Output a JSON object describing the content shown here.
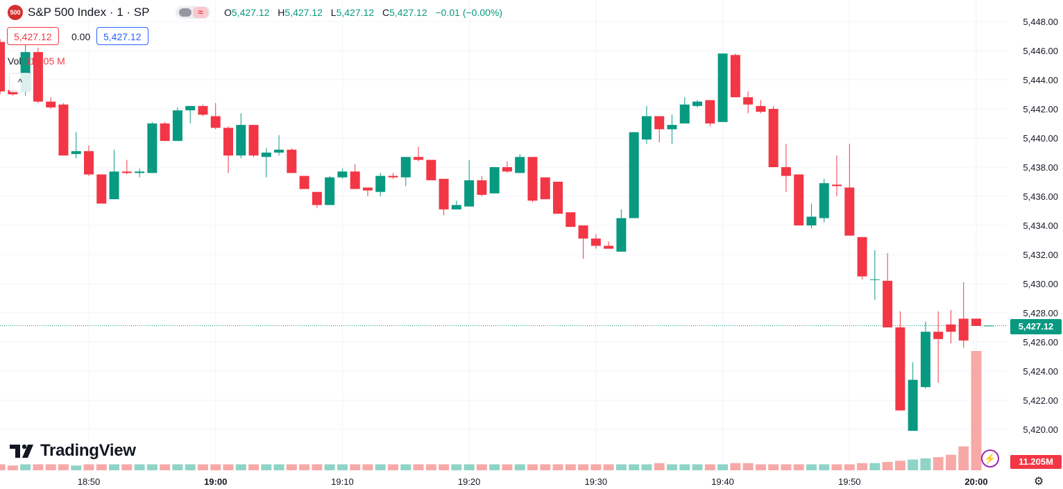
{
  "header": {
    "badge": "500",
    "symbol_title": "S&P 500 Index · 1 · SP",
    "indicator_toggle_icon": "approx-icon",
    "ohlc": {
      "o_label": "O",
      "o": "5,427.12",
      "h_label": "H",
      "h": "5,427.12",
      "l_label": "L",
      "l": "5,427.12",
      "c_label": "C",
      "c": "5,427.12",
      "change": "−0.01 (−0.00%)"
    },
    "bid": "5,427.12",
    "spread": "0.00",
    "ask": "5,427.12"
  },
  "volume_legend": {
    "label": "Vol",
    "value": "11.205 M"
  },
  "collapse_icon": "chevron-up-icon",
  "brand": "TradingView",
  "last_price_label": "5,427.12",
  "last_volume_label": "11.205M",
  "colors": {
    "up": "#089981",
    "down": "#f23645",
    "up_vol": "#8fd4c6",
    "down_vol": "#f7a9a8",
    "grid": "#f0f3fa",
    "text": "#131722"
  },
  "chart_data": {
    "type": "candlestick",
    "title": "S&P 500 Index · 1 · SP",
    "x_ticks": [
      "18:50",
      "19:00",
      "19:10",
      "19:20",
      "19:30",
      "19:40",
      "19:50",
      "20:00"
    ],
    "y_ticks": [
      "5,420.00",
      "5,422.00",
      "5,424.00",
      "5,426.00",
      "5,428.00",
      "5,430.00",
      "5,432.00",
      "5,434.00",
      "5,436.00",
      "5,438.00",
      "5,440.00",
      "5,442.00",
      "5,444.00",
      "5,446.00",
      "5,448.00"
    ],
    "ylim": [
      5418.8,
      5448.6
    ],
    "last_price": 5427.12,
    "interval": "1 minute",
    "candles": [
      {
        "t": "18:43",
        "o": 5446.6,
        "h": 5446.8,
        "l": 5443.0,
        "c": 5443.2
      },
      {
        "t": "18:44",
        "o": 5443.3,
        "h": 5443.6,
        "l": 5442.9,
        "c": 5443.0
      },
      {
        "t": "18:45",
        "o": 5443.2,
        "h": 5446.8,
        "l": 5442.9,
        "c": 5445.9
      },
      {
        "t": "18:46",
        "o": 5445.9,
        "h": 5446.2,
        "l": 5442.4,
        "c": 5442.5
      },
      {
        "t": "18:47",
        "o": 5442.5,
        "h": 5442.8,
        "l": 5442.0,
        "c": 5442.1
      },
      {
        "t": "18:48",
        "o": 5442.3,
        "h": 5442.4,
        "l": 5438.8,
        "c": 5438.8
      },
      {
        "t": "18:49",
        "o": 5438.9,
        "h": 5440.4,
        "l": 5438.6,
        "c": 5439.1
      },
      {
        "t": "18:50",
        "o": 5439.1,
        "h": 5439.5,
        "l": 5437.4,
        "c": 5437.5
      },
      {
        "t": "18:51",
        "o": 5437.5,
        "h": 5437.5,
        "l": 5435.5,
        "c": 5435.5
      },
      {
        "t": "18:52",
        "o": 5435.8,
        "h": 5439.2,
        "l": 5435.8,
        "c": 5437.7
      },
      {
        "t": "18:53",
        "o": 5437.7,
        "h": 5438.5,
        "l": 5437.5,
        "c": 5437.6
      },
      {
        "t": "18:54",
        "o": 5437.6,
        "h": 5437.9,
        "l": 5437.3,
        "c": 5437.7
      },
      {
        "t": "18:55",
        "o": 5437.6,
        "h": 5441.1,
        "l": 5437.6,
        "c": 5441.0
      },
      {
        "t": "18:56",
        "o": 5441.0,
        "h": 5441.1,
        "l": 5439.8,
        "c": 5439.8
      },
      {
        "t": "18:57",
        "o": 5439.8,
        "h": 5442.1,
        "l": 5439.8,
        "c": 5441.9
      },
      {
        "t": "18:58",
        "o": 5441.9,
        "h": 5442.2,
        "l": 5441.0,
        "c": 5442.2
      },
      {
        "t": "18:59",
        "o": 5442.2,
        "h": 5442.3,
        "l": 5441.5,
        "c": 5441.6
      },
      {
        "t": "19:00",
        "o": 5441.5,
        "h": 5442.4,
        "l": 5440.6,
        "c": 5440.7
      },
      {
        "t": "19:01",
        "o": 5440.7,
        "h": 5440.8,
        "l": 5437.6,
        "c": 5438.8
      },
      {
        "t": "19:02",
        "o": 5438.8,
        "h": 5441.7,
        "l": 5438.6,
        "c": 5440.9
      },
      {
        "t": "19:03",
        "o": 5440.9,
        "h": 5440.9,
        "l": 5438.7,
        "c": 5438.8
      },
      {
        "t": "19:04",
        "o": 5438.7,
        "h": 5439.3,
        "l": 5437.3,
        "c": 5439.0
      },
      {
        "t": "19:05",
        "o": 5439.0,
        "h": 5440.2,
        "l": 5438.8,
        "c": 5439.2
      },
      {
        "t": "19:06",
        "o": 5439.2,
        "h": 5439.3,
        "l": 5437.6,
        "c": 5437.6
      },
      {
        "t": "19:07",
        "o": 5437.4,
        "h": 5437.4,
        "l": 5436.5,
        "c": 5436.5
      },
      {
        "t": "19:08",
        "o": 5436.3,
        "h": 5436.3,
        "l": 5435.2,
        "c": 5435.4
      },
      {
        "t": "19:09",
        "o": 5435.4,
        "h": 5437.4,
        "l": 5435.4,
        "c": 5437.3
      },
      {
        "t": "19:10",
        "o": 5437.3,
        "h": 5437.9,
        "l": 5437.2,
        "c": 5437.7
      },
      {
        "t": "19:11",
        "o": 5437.7,
        "h": 5438.2,
        "l": 5436.5,
        "c": 5436.5
      },
      {
        "t": "19:12",
        "o": 5436.6,
        "h": 5436.6,
        "l": 5436.0,
        "c": 5436.4
      },
      {
        "t": "19:13",
        "o": 5436.3,
        "h": 5437.6,
        "l": 5436.0,
        "c": 5437.4
      },
      {
        "t": "19:14",
        "o": 5437.4,
        "h": 5437.6,
        "l": 5437.2,
        "c": 5437.3
      },
      {
        "t": "19:15",
        "o": 5437.3,
        "h": 5438.7,
        "l": 5436.7,
        "c": 5438.7
      },
      {
        "t": "19:16",
        "o": 5438.7,
        "h": 5439.4,
        "l": 5438.4,
        "c": 5438.5
      },
      {
        "t": "19:17",
        "o": 5438.5,
        "h": 5438.5,
        "l": 5437.1,
        "c": 5437.1
      },
      {
        "t": "19:18",
        "o": 5437.2,
        "h": 5437.2,
        "l": 5434.7,
        "c": 5435.1
      },
      {
        "t": "19:19",
        "o": 5435.1,
        "h": 5435.7,
        "l": 5435.1,
        "c": 5435.4
      },
      {
        "t": "19:20",
        "o": 5435.3,
        "h": 5438.5,
        "l": 5435.3,
        "c": 5437.1
      },
      {
        "t": "19:21",
        "o": 5437.1,
        "h": 5437.4,
        "l": 5436.0,
        "c": 5436.1
      },
      {
        "t": "19:22",
        "o": 5436.2,
        "h": 5438.0,
        "l": 5436.2,
        "c": 5438.0
      },
      {
        "t": "19:23",
        "o": 5438.0,
        "h": 5438.4,
        "l": 5437.6,
        "c": 5437.7
      },
      {
        "t": "19:24",
        "o": 5437.6,
        "h": 5438.9,
        "l": 5437.6,
        "c": 5438.7
      },
      {
        "t": "19:25",
        "o": 5438.7,
        "h": 5438.7,
        "l": 5435.6,
        "c": 5435.7
      },
      {
        "t": "19:26",
        "o": 5437.3,
        "h": 5437.3,
        "l": 5435.8,
        "c": 5435.8
      },
      {
        "t": "19:27",
        "o": 5437.0,
        "h": 5437.0,
        "l": 5434.8,
        "c": 5434.8
      },
      {
        "t": "19:28",
        "o": 5434.9,
        "h": 5434.9,
        "l": 5433.9,
        "c": 5433.9
      },
      {
        "t": "19:29",
        "o": 5434.0,
        "h": 5434.0,
        "l": 5431.7,
        "c": 5433.1
      },
      {
        "t": "19:30",
        "o": 5433.1,
        "h": 5433.4,
        "l": 5432.4,
        "c": 5432.6
      },
      {
        "t": "19:31",
        "o": 5432.6,
        "h": 5432.9,
        "l": 5432.4,
        "c": 5432.4
      },
      {
        "t": "19:32",
        "o": 5432.2,
        "h": 5435.1,
        "l": 5432.2,
        "c": 5434.5
      },
      {
        "t": "19:33",
        "o": 5434.5,
        "h": 5440.4,
        "l": 5434.5,
        "c": 5440.4
      },
      {
        "t": "19:34",
        "o": 5439.9,
        "h": 5442.2,
        "l": 5439.6,
        "c": 5441.5
      },
      {
        "t": "19:35",
        "o": 5441.5,
        "h": 5441.5,
        "l": 5439.7,
        "c": 5440.6
      },
      {
        "t": "19:36",
        "o": 5440.6,
        "h": 5441.6,
        "l": 5439.6,
        "c": 5440.9
      },
      {
        "t": "19:37",
        "o": 5441.0,
        "h": 5442.8,
        "l": 5441.0,
        "c": 5442.3
      },
      {
        "t": "19:38",
        "o": 5442.2,
        "h": 5442.6,
        "l": 5442.1,
        "c": 5442.5
      },
      {
        "t": "19:39",
        "o": 5442.6,
        "h": 5442.6,
        "l": 5440.8,
        "c": 5441.0
      },
      {
        "t": "19:40",
        "o": 5441.1,
        "h": 5445.8,
        "l": 5441.1,
        "c": 5445.8
      },
      {
        "t": "19:41",
        "o": 5445.7,
        "h": 5445.8,
        "l": 5442.8,
        "c": 5442.8
      },
      {
        "t": "19:42",
        "o": 5442.8,
        "h": 5443.2,
        "l": 5441.7,
        "c": 5442.3
      },
      {
        "t": "19:43",
        "o": 5442.2,
        "h": 5442.6,
        "l": 5441.7,
        "c": 5441.8
      },
      {
        "t": "19:44",
        "o": 5442.0,
        "h": 5442.2,
        "l": 5438.0,
        "c": 5438.0
      },
      {
        "t": "19:45",
        "o": 5438.0,
        "h": 5439.6,
        "l": 5436.3,
        "c": 5437.4
      },
      {
        "t": "19:46",
        "o": 5437.5,
        "h": 5437.5,
        "l": 5434.0,
        "c": 5434.0
      },
      {
        "t": "19:47",
        "o": 5434.0,
        "h": 5435.5,
        "l": 5433.8,
        "c": 5434.6
      },
      {
        "t": "19:48",
        "o": 5434.5,
        "h": 5437.2,
        "l": 5434.2,
        "c": 5436.9
      },
      {
        "t": "19:49",
        "o": 5436.8,
        "h": 5438.8,
        "l": 5436.0,
        "c": 5436.7
      },
      {
        "t": "19:50",
        "o": 5436.6,
        "h": 5439.6,
        "l": 5433.3,
        "c": 5433.3
      },
      {
        "t": "19:51",
        "o": 5433.2,
        "h": 5433.2,
        "l": 5430.3,
        "c": 5430.5
      },
      {
        "t": "19:52",
        "o": 5430.3,
        "h": 5432.3,
        "l": 5428.9,
        "c": 5430.3
      },
      {
        "t": "19:53",
        "o": 5430.2,
        "h": 5432.1,
        "l": 5427.0,
        "c": 5427.0
      },
      {
        "t": "19:54",
        "o": 5427.0,
        "h": 5428.1,
        "l": 5421.3,
        "c": 5421.3
      },
      {
        "t": "19:55",
        "o": 5419.9,
        "h": 5424.6,
        "l": 5419.9,
        "c": 5423.4
      },
      {
        "t": "19:56",
        "o": 5422.9,
        "h": 5427.4,
        "l": 5422.8,
        "c": 5426.7
      },
      {
        "t": "19:57",
        "o": 5426.7,
        "h": 5428.1,
        "l": 5423.2,
        "c": 5426.2
      },
      {
        "t": "19:58",
        "o": 5427.2,
        "h": 5428.2,
        "l": 5425.9,
        "c": 5426.7
      },
      {
        "t": "19:59",
        "o": 5427.6,
        "h": 5430.1,
        "l": 5425.6,
        "c": 5426.1
      },
      {
        "t": "20:00",
        "o": 5427.6,
        "h": 5427.6,
        "l": 5427.1,
        "c": 5427.1
      },
      {
        "t": "20:01",
        "o": 5427.12,
        "h": 5427.12,
        "l": 5427.12,
        "c": 5427.12
      }
    ],
    "volume_rel": [
      0.05,
      0.04,
      0.05,
      0.05,
      0.05,
      0.05,
      0.04,
      0.05,
      0.05,
      0.05,
      0.05,
      0.05,
      0.05,
      0.05,
      0.05,
      0.05,
      0.05,
      0.05,
      0.05,
      0.05,
      0.05,
      0.05,
      0.05,
      0.05,
      0.05,
      0.05,
      0.05,
      0.05,
      0.05,
      0.05,
      0.05,
      0.05,
      0.05,
      0.05,
      0.05,
      0.05,
      0.05,
      0.05,
      0.05,
      0.05,
      0.05,
      0.05,
      0.05,
      0.05,
      0.05,
      0.05,
      0.05,
      0.05,
      0.05,
      0.05,
      0.05,
      0.05,
      0.06,
      0.05,
      0.05,
      0.05,
      0.05,
      0.05,
      0.06,
      0.06,
      0.05,
      0.05,
      0.05,
      0.05,
      0.05,
      0.05,
      0.05,
      0.05,
      0.06,
      0.06,
      0.07,
      0.08,
      0.09,
      0.1,
      0.11,
      0.13,
      0.2,
      1.0,
      0.0
    ]
  }
}
